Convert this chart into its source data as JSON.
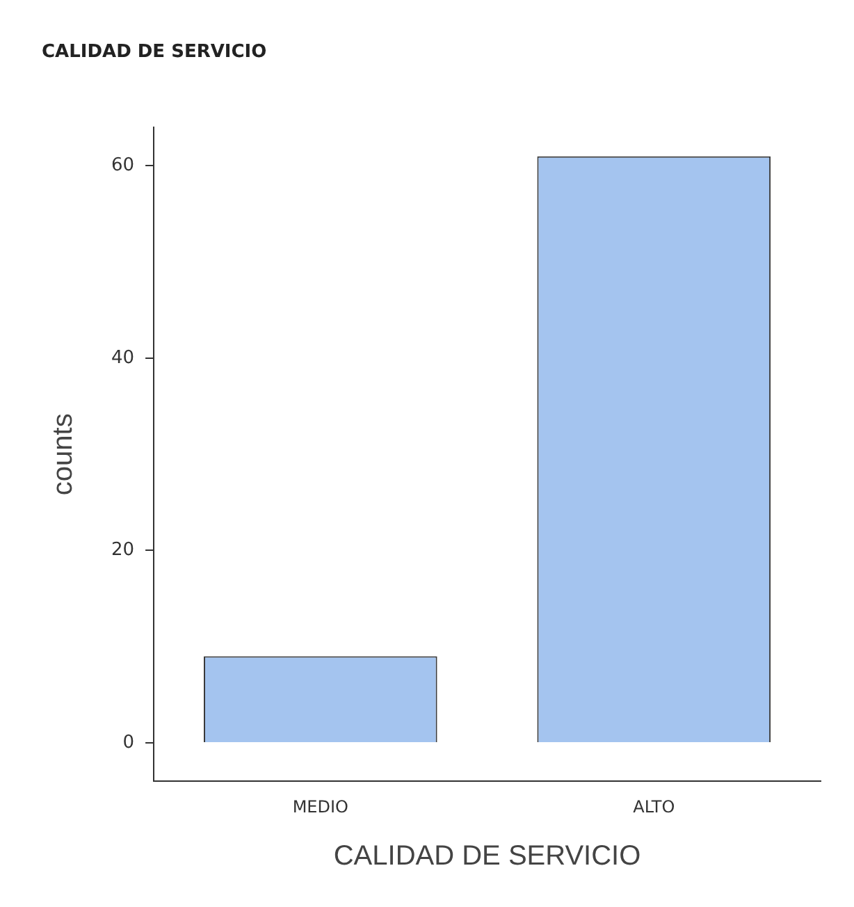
{
  "chart_data": {
    "type": "bar",
    "title": "CALIDAD DE SERVICIO",
    "xlabel": "CALIDAD DE SERVICIO",
    "ylabel": "counts",
    "categories": [
      "MEDIO",
      "ALTO"
    ],
    "values": [
      9,
      61
    ],
    "color": "#a4c4ef",
    "ylim": [
      -4,
      64
    ],
    "yticks": [
      0,
      20,
      40,
      60
    ],
    "grid": false,
    "legend": false
  }
}
